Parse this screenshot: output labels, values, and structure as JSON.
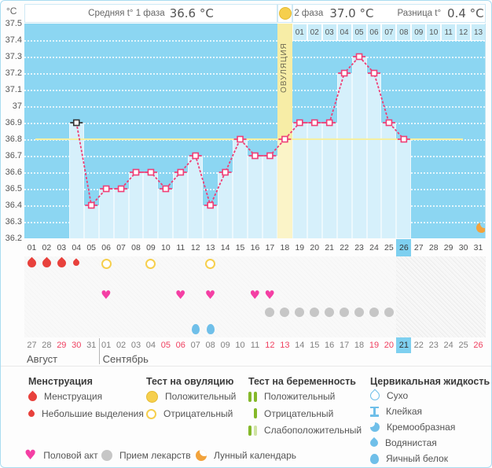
{
  "units_label": "°C",
  "header": {
    "phase1_label": "Средняя t° 1 фаза",
    "phase1_value": "36.6 °C",
    "phase2_label": "2 фаза",
    "phase2_value": "37.0 °C",
    "diff_label": "Разница t°",
    "diff_value": "0.4 °C"
  },
  "chart_data": {
    "type": "line",
    "title": "Basal body temperature cycle chart",
    "ylabel": "°C",
    "ylim": [
      36.2,
      37.5
    ],
    "yticks": [
      "37.5",
      "37.4",
      "37.3",
      "37.2",
      "37.1",
      "37",
      "36.9",
      "36.8",
      "36.7",
      "36.6",
      "36.5",
      "36.4",
      "36.3",
      "36.2"
    ],
    "x_days": [
      "01",
      "02",
      "03",
      "04",
      "05",
      "06",
      "07",
      "08",
      "09",
      "10",
      "11",
      "12",
      "13",
      "14",
      "15",
      "16",
      "17",
      "18",
      "19",
      "20",
      "21",
      "22",
      "23",
      "24",
      "25",
      "26",
      "27",
      "28",
      "29",
      "30",
      "31"
    ],
    "points": [
      {
        "day": 4,
        "t": 36.9,
        "excluded": true
      },
      {
        "day": 5,
        "t": 36.4
      },
      {
        "day": 6,
        "t": 36.5
      },
      {
        "day": 7,
        "t": 36.5
      },
      {
        "day": 8,
        "t": 36.6
      },
      {
        "day": 9,
        "t": 36.6
      },
      {
        "day": 10,
        "t": 36.5
      },
      {
        "day": 11,
        "t": 36.6
      },
      {
        "day": 12,
        "t": 36.7
      },
      {
        "day": 13,
        "t": 36.4
      },
      {
        "day": 14,
        "t": 36.6
      },
      {
        "day": 15,
        "t": 36.8
      },
      {
        "day": 16,
        "t": 36.7
      },
      {
        "day": 17,
        "t": 36.7
      },
      {
        "day": 18,
        "t": 36.8
      },
      {
        "day": 19,
        "t": 36.9
      },
      {
        "day": 20,
        "t": 36.9
      },
      {
        "day": 21,
        "t": 36.9
      },
      {
        "day": 22,
        "t": 37.2
      },
      {
        "day": 23,
        "t": 37.3
      },
      {
        "day": 24,
        "t": 37.2
      },
      {
        "day": 25,
        "t": 36.9
      },
      {
        "day": 26,
        "t": 36.8
      }
    ],
    "coverline_temp": 36.8,
    "ovulation_day": 18,
    "ovulation_label": "ОВУЛЯЦИЯ",
    "phase2_day_numbers": [
      "01",
      "02",
      "03",
      "04",
      "05",
      "06",
      "07",
      "08",
      "09",
      "10",
      "11",
      "12",
      "13"
    ],
    "today_day": 26,
    "moon_day": 30,
    "legend_position": "bottom",
    "grid": true
  },
  "rows": {
    "menstruation_heavy_days": [
      1,
      2,
      3
    ],
    "menstruation_light_days": [
      4
    ],
    "ovulation_test_negative_days": [
      6,
      9,
      13
    ],
    "intercourse_days": [
      6,
      11,
      13,
      16,
      17
    ],
    "medication_days": [
      17,
      18,
      19,
      20,
      21,
      22,
      23,
      24,
      25
    ],
    "cervical_eggwhite_days": [
      12,
      13
    ]
  },
  "calendar": {
    "dates": [
      "27",
      "28",
      "29",
      "30",
      "31",
      "01",
      "02",
      "03",
      "04",
      "05",
      "06",
      "07",
      "08",
      "09",
      "10",
      "11",
      "12",
      "13",
      "14",
      "15",
      "16",
      "17",
      "18",
      "19",
      "20",
      "21",
      "22",
      "23",
      "24",
      "25",
      "26"
    ],
    "red_indices": [
      2,
      3,
      9,
      10,
      16,
      17,
      23,
      24,
      30
    ],
    "today_index": 25,
    "month1": "Август",
    "month2": "Сентябрь",
    "month_divider_after_index": 4
  },
  "legend": {
    "sections": [
      {
        "title": "Менструация",
        "items": [
          {
            "icon": "drop-big",
            "label": "Менструация"
          },
          {
            "icon": "drop-small",
            "label": "Небольшие выделения"
          }
        ]
      },
      {
        "title": "Тест на овуляцию",
        "items": [
          {
            "icon": "circle-filled",
            "label": "Положительный"
          },
          {
            "icon": "circle-outline",
            "label": "Отрицательный"
          }
        ]
      },
      {
        "title": "Тест на беременность",
        "items": [
          {
            "icon": "bars-positive",
            "label": "Положительный"
          },
          {
            "icon": "bars-negative",
            "label": "Отрицательный"
          },
          {
            "icon": "bars-weak",
            "label": "Слабоположительный"
          }
        ]
      },
      {
        "title": "Цервикальная жидкость",
        "items": [
          {
            "icon": "cf-dry",
            "label": "Сухо"
          },
          {
            "icon": "cf-sticky",
            "label": "Клейкая"
          },
          {
            "icon": "cf-creamy",
            "label": "Кремообразная"
          },
          {
            "icon": "cf-watery",
            "label": "Водянистая"
          },
          {
            "icon": "cf-eggwhite",
            "label": "Яичный белок"
          }
        ]
      }
    ],
    "bottom": [
      {
        "icon": "heart",
        "label": "Половой акт"
      },
      {
        "icon": "pill",
        "label": "Прием лекарств"
      },
      {
        "icon": "moon",
        "label": "Лунный календарь"
      }
    ]
  },
  "colors": {
    "chart_bg": "#8cd6f2",
    "column_fill": "#d6f0fb",
    "ovulation_column": "#f7eda6",
    "ovulation_column_light": "#fbf4c8",
    "coverline": "#f5efa0",
    "temp_line": "#ef3e76",
    "excluded_marker": "#333333",
    "phase2_cell_bg": "#c9ecf9",
    "highlight_day": "#7ed0f0",
    "menstruation": "#e8413c",
    "intercourse": "#f43fa4",
    "medication": "#c6c6c6",
    "cervical": "#6fbfe9",
    "ovulation_test": "#f6cf4d",
    "pregnancy_test": "#84b829",
    "pregnancy_test_weak": "#cfe3a2",
    "moon": "#f2a33c",
    "weekend_date": "#ef4060"
  }
}
